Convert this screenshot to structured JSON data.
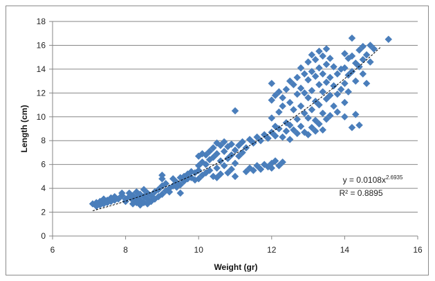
{
  "chart_data": {
    "type": "scatter",
    "xlabel": "Weight (gr)",
    "ylabel": "Length (cm)",
    "xlim": [
      6,
      16
    ],
    "ylim": [
      0,
      18
    ],
    "x_ticks": [
      6,
      8,
      10,
      12,
      14,
      16
    ],
    "y_ticks": [
      0,
      2,
      4,
      6,
      8,
      10,
      12,
      14,
      16,
      18
    ],
    "grid": "horizontal",
    "marker": "diamond",
    "marker_color": "#4a7ebb",
    "trendline": {
      "type": "power",
      "a": 0.0108,
      "b": 2.6935,
      "equation_prefix": "y = 0.0108x",
      "equation_exponent": "2.6935",
      "r2_text": "R² = 0.8895",
      "style": "dashed",
      "color": "#000000"
    },
    "points": [
      [
        7.1,
        2.7
      ],
      [
        7.2,
        2.5
      ],
      [
        7.2,
        2.8
      ],
      [
        7.3,
        2.6
      ],
      [
        7.3,
        2.9
      ],
      [
        7.4,
        2.7
      ],
      [
        7.4,
        3.1
      ],
      [
        7.5,
        2.8
      ],
      [
        7.5,
        3.0
      ],
      [
        7.6,
        2.9
      ],
      [
        7.6,
        3.2
      ],
      [
        7.7,
        3.0
      ],
      [
        7.7,
        3.3
      ],
      [
        7.8,
        3.1
      ],
      [
        7.9,
        3.4
      ],
      [
        7.9,
        3.6
      ],
      [
        8.0,
        2.9
      ],
      [
        8.0,
        3.1
      ],
      [
        8.1,
        3.3
      ],
      [
        8.1,
        3.6
      ],
      [
        8.2,
        2.7
      ],
      [
        8.2,
        3.0
      ],
      [
        8.2,
        3.4
      ],
      [
        8.3,
        2.8
      ],
      [
        8.3,
        3.2
      ],
      [
        8.3,
        3.7
      ],
      [
        8.4,
        2.6
      ],
      [
        8.4,
        3.0
      ],
      [
        8.4,
        3.5
      ],
      [
        8.5,
        2.8
      ],
      [
        8.5,
        3.3
      ],
      [
        8.5,
        3.9
      ],
      [
        8.6,
        2.7
      ],
      [
        8.6,
        3.1
      ],
      [
        8.6,
        3.6
      ],
      [
        8.7,
        2.9
      ],
      [
        8.7,
        3.4
      ],
      [
        8.8,
        3.1
      ],
      [
        8.8,
        3.7
      ],
      [
        8.9,
        3.3
      ],
      [
        8.9,
        3.9
      ],
      [
        9.0,
        3.5
      ],
      [
        9.0,
        4.2
      ],
      [
        9.0,
        4.8
      ],
      [
        9.0,
        5.1
      ],
      [
        9.1,
        3.8
      ],
      [
        9.1,
        4.4
      ],
      [
        9.2,
        4.0
      ],
      [
        9.2,
        3.7
      ],
      [
        9.3,
        4.2
      ],
      [
        9.3,
        4.8
      ],
      [
        9.4,
        4.5
      ],
      [
        9.4,
        4.1
      ],
      [
        9.5,
        4.9
      ],
      [
        9.5,
        4.3
      ],
      [
        9.5,
        3.6
      ],
      [
        9.6,
        5.0
      ],
      [
        9.6,
        4.6
      ],
      [
        9.7,
        5.2
      ],
      [
        9.7,
        4.8
      ],
      [
        9.8,
        5.4
      ],
      [
        9.8,
        4.9
      ],
      [
        9.9,
        5.3
      ],
      [
        9.9,
        4.7
      ],
      [
        10.0,
        5.5
      ],
      [
        10.0,
        6.7
      ],
      [
        10.0,
        5.9
      ],
      [
        10.0,
        4.8
      ],
      [
        10.1,
        6.9
      ],
      [
        10.1,
        6.2
      ],
      [
        10.1,
        5.1
      ],
      [
        10.2,
        6.8
      ],
      [
        10.2,
        6.0
      ],
      [
        10.2,
        5.3
      ],
      [
        10.3,
        7.1
      ],
      [
        10.3,
        6.4
      ],
      [
        10.3,
        5.5
      ],
      [
        10.4,
        7.4
      ],
      [
        10.4,
        6.6
      ],
      [
        10.4,
        5.0
      ],
      [
        10.5,
        7.8
      ],
      [
        10.5,
        6.9
      ],
      [
        10.5,
        5.7
      ],
      [
        10.5,
        4.9
      ],
      [
        10.6,
        7.6
      ],
      [
        10.6,
        6.3
      ],
      [
        10.6,
        5.2
      ],
      [
        10.7,
        7.9
      ],
      [
        10.7,
        7.1
      ],
      [
        10.7,
        5.9
      ],
      [
        10.8,
        7.5
      ],
      [
        10.8,
        6.5
      ],
      [
        10.8,
        5.3
      ],
      [
        10.9,
        7.7
      ],
      [
        10.9,
        6.8
      ],
      [
        10.9,
        5.6
      ],
      [
        11.0,
        7.2
      ],
      [
        11.0,
        10.5
      ],
      [
        11.0,
        6.1
      ],
      [
        11.0,
        5.0
      ],
      [
        11.1,
        7.6
      ],
      [
        11.1,
        6.7
      ],
      [
        11.2,
        7.9
      ],
      [
        11.2,
        7.0
      ],
      [
        11.3,
        5.4
      ],
      [
        11.3,
        7.4
      ],
      [
        11.4,
        8.1
      ],
      [
        11.4,
        5.7
      ],
      [
        11.5,
        7.8
      ],
      [
        11.5,
        5.5
      ],
      [
        11.6,
        8.3
      ],
      [
        11.6,
        5.9
      ],
      [
        11.7,
        8.0
      ],
      [
        11.7,
        5.6
      ],
      [
        11.8,
        8.5
      ],
      [
        11.8,
        6.0
      ],
      [
        11.9,
        8.2
      ],
      [
        11.9,
        5.8
      ],
      [
        12.0,
        8.7
      ],
      [
        12.0,
        12.8
      ],
      [
        12.0,
        11.4
      ],
      [
        12.0,
        9.9
      ],
      [
        12.0,
        6.1
      ],
      [
        12.0,
        5.7
      ],
      [
        12.1,
        9.2
      ],
      [
        12.1,
        11.8
      ],
      [
        12.1,
        6.3
      ],
      [
        12.1,
        8.4
      ],
      [
        12.2,
        12.1
      ],
      [
        12.2,
        10.4
      ],
      [
        12.2,
        5.9
      ],
      [
        12.2,
        9.0
      ],
      [
        12.3,
        10.9
      ],
      [
        12.3,
        8.3
      ],
      [
        12.3,
        6.2
      ],
      [
        12.3,
        11.6
      ],
      [
        12.4,
        9.5
      ],
      [
        12.4,
        12.3
      ],
      [
        12.4,
        8.8
      ],
      [
        12.5,
        13.0
      ],
      [
        12.5,
        11.2
      ],
      [
        12.5,
        9.3
      ],
      [
        12.5,
        8.1
      ],
      [
        12.6,
        12.7
      ],
      [
        12.6,
        10.6
      ],
      [
        12.6,
        8.9
      ],
      [
        12.7,
        13.3
      ],
      [
        12.7,
        11.9
      ],
      [
        12.7,
        9.8
      ],
      [
        12.7,
        8.6
      ],
      [
        12.8,
        14.1
      ],
      [
        12.8,
        12.4
      ],
      [
        12.8,
        10.9
      ],
      [
        12.8,
        9.2
      ],
      [
        12.9,
        13.6
      ],
      [
        12.9,
        12.0
      ],
      [
        12.9,
        10.3
      ],
      [
        12.9,
        8.7
      ],
      [
        13.0,
        14.6
      ],
      [
        13.0,
        13.1
      ],
      [
        13.0,
        11.6
      ],
      [
        13.0,
        9.9
      ],
      [
        13.0,
        8.5
      ],
      [
        13.1,
        15.2
      ],
      [
        13.1,
        13.8
      ],
      [
        13.1,
        12.2
      ],
      [
        13.1,
        10.6
      ],
      [
        13.1,
        9.1
      ],
      [
        13.2,
        14.8
      ],
      [
        13.2,
        13.4
      ],
      [
        13.2,
        11.3
      ],
      [
        13.2,
        9.7
      ],
      [
        13.2,
        8.8
      ],
      [
        13.3,
        15.5
      ],
      [
        13.3,
        14.1
      ],
      [
        13.3,
        12.7
      ],
      [
        13.3,
        11.0
      ],
      [
        13.3,
        9.4
      ],
      [
        13.4,
        15.1
      ],
      [
        13.4,
        13.6
      ],
      [
        13.4,
        12.1
      ],
      [
        13.4,
        10.3
      ],
      [
        13.4,
        8.9
      ],
      [
        13.5,
        15.7
      ],
      [
        13.5,
        14.4
      ],
      [
        13.5,
        12.9
      ],
      [
        13.5,
        11.5
      ],
      [
        13.5,
        9.8
      ],
      [
        13.6,
        14.9
      ],
      [
        13.6,
        13.3
      ],
      [
        13.6,
        11.8
      ],
      [
        13.6,
        10.1
      ],
      [
        13.7,
        14.2
      ],
      [
        13.7,
        12.6
      ],
      [
        13.7,
        10.9
      ],
      [
        13.8,
        13.6
      ],
      [
        13.8,
        11.9
      ],
      [
        13.8,
        10.4
      ],
      [
        13.9,
        14.0
      ],
      [
        13.9,
        12.3
      ],
      [
        14.0,
        15.3
      ],
      [
        14.0,
        14.1
      ],
      [
        14.0,
        12.8
      ],
      [
        14.0,
        11.2
      ],
      [
        14.0,
        10.0
      ],
      [
        14.1,
        14.9
      ],
      [
        14.1,
        13.5
      ],
      [
        14.1,
        12.1
      ],
      [
        14.2,
        16.6
      ],
      [
        14.2,
        15.1
      ],
      [
        14.2,
        13.8
      ],
      [
        14.2,
        9.1
      ],
      [
        14.3,
        14.5
      ],
      [
        14.3,
        13.0
      ],
      [
        14.3,
        10.2
      ],
      [
        14.4,
        15.6
      ],
      [
        14.4,
        14.2
      ],
      [
        14.4,
        9.3
      ],
      [
        14.5,
        15.9
      ],
      [
        14.5,
        14.8
      ],
      [
        14.5,
        13.6
      ],
      [
        14.6,
        15.2
      ],
      [
        14.6,
        12.8
      ],
      [
        14.7,
        16.0
      ],
      [
        14.7,
        14.6
      ],
      [
        14.8,
        15.7
      ],
      [
        15.2,
        16.5
      ]
    ]
  }
}
